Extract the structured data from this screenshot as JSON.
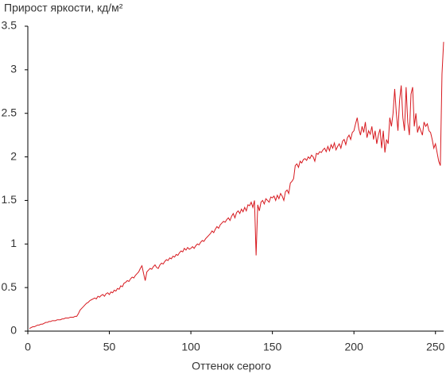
{
  "chart_data": {
    "type": "line",
    "title": "Прирост яркости, кд/м²",
    "x_label": "Оттенок серого",
    "color": "#d7191f",
    "xlim": [
      0,
      255
    ],
    "ylim": [
      0,
      3.5
    ],
    "xticks": [
      0,
      50,
      100,
      150,
      200,
      250
    ],
    "yticks": [
      0,
      0.5,
      1,
      1.5,
      2,
      2.5,
      3,
      3.5
    ],
    "grid": false,
    "x": [
      1,
      2,
      3,
      4,
      5,
      6,
      7,
      8,
      9,
      10,
      11,
      12,
      13,
      14,
      15,
      16,
      17,
      18,
      19,
      20,
      21,
      22,
      23,
      24,
      25,
      26,
      27,
      28,
      29,
      30,
      31,
      32,
      33,
      34,
      35,
      36,
      37,
      38,
      39,
      40,
      41,
      42,
      43,
      44,
      45,
      46,
      47,
      48,
      49,
      50,
      51,
      52,
      53,
      54,
      55,
      56,
      57,
      58,
      59,
      60,
      61,
      62,
      63,
      64,
      65,
      66,
      67,
      68,
      69,
      70,
      71,
      72,
      73,
      74,
      75,
      76,
      77,
      78,
      79,
      80,
      81,
      82,
      83,
      84,
      85,
      86,
      87,
      88,
      89,
      90,
      91,
      92,
      93,
      94,
      95,
      96,
      97,
      98,
      99,
      100,
      101,
      102,
      103,
      104,
      105,
      106,
      107,
      108,
      109,
      110,
      111,
      112,
      113,
      114,
      115,
      116,
      117,
      118,
      119,
      120,
      121,
      122,
      123,
      124,
      125,
      126,
      127,
      128,
      129,
      130,
      131,
      132,
      133,
      134,
      135,
      136,
      137,
      138,
      139,
      140,
      141,
      142,
      143,
      144,
      145,
      146,
      147,
      148,
      149,
      150,
      151,
      152,
      153,
      154,
      155,
      156,
      157,
      158,
      159,
      160,
      161,
      162,
      163,
      164,
      165,
      166,
      167,
      168,
      169,
      170,
      171,
      172,
      173,
      174,
      175,
      176,
      177,
      178,
      179,
      180,
      181,
      182,
      183,
      184,
      185,
      186,
      187,
      188,
      189,
      190,
      191,
      192,
      193,
      194,
      195,
      196,
      197,
      198,
      199,
      200,
      201,
      202,
      203,
      204,
      205,
      206,
      207,
      208,
      209,
      210,
      211,
      212,
      213,
      214,
      215,
      216,
      217,
      218,
      219,
      220,
      221,
      222,
      223,
      224,
      225,
      226,
      227,
      228,
      229,
      230,
      231,
      232,
      233,
      234,
      235,
      236,
      237,
      238,
      239,
      240,
      241,
      242,
      243,
      244,
      245,
      246,
      247,
      248,
      249,
      250,
      251,
      252,
      253,
      254,
      255
    ],
    "values": [
      0.03,
      0.04,
      0.05,
      0.05,
      0.06,
      0.07,
      0.07,
      0.08,
      0.08,
      0.09,
      0.1,
      0.1,
      0.11,
      0.11,
      0.12,
      0.12,
      0.12,
      0.13,
      0.13,
      0.13,
      0.14,
      0.14,
      0.15,
      0.15,
      0.15,
      0.16,
      0.16,
      0.16,
      0.17,
      0.17,
      0.2,
      0.24,
      0.26,
      0.28,
      0.3,
      0.32,
      0.33,
      0.35,
      0.36,
      0.37,
      0.38,
      0.37,
      0.4,
      0.39,
      0.41,
      0.42,
      0.4,
      0.43,
      0.44,
      0.42,
      0.45,
      0.44,
      0.47,
      0.46,
      0.49,
      0.48,
      0.52,
      0.51,
      0.55,
      0.56,
      0.58,
      0.57,
      0.6,
      0.62,
      0.61,
      0.64,
      0.66,
      0.68,
      0.72,
      0.75,
      0.66,
      0.58,
      0.68,
      0.7,
      0.72,
      0.71,
      0.74,
      0.76,
      0.73,
      0.72,
      0.76,
      0.78,
      0.77,
      0.8,
      0.82,
      0.81,
      0.84,
      0.83,
      0.86,
      0.85,
      0.88,
      0.87,
      0.9,
      0.92,
      0.91,
      0.95,
      0.93,
      0.96,
      0.94,
      0.95,
      0.97,
      0.95,
      0.98,
      1.0,
      0.99,
      1.02,
      1.04,
      1.03,
      1.06,
      1.08,
      1.1,
      1.12,
      1.15,
      1.13,
      1.17,
      1.2,
      1.18,
      1.22,
      1.24,
      1.26,
      1.25,
      1.28,
      1.3,
      1.27,
      1.32,
      1.35,
      1.3,
      1.36,
      1.38,
      1.35,
      1.4,
      1.37,
      1.42,
      1.38,
      1.45,
      1.44,
      1.48,
      1.42,
      1.5,
      0.87,
      1.45,
      1.38,
      1.48,
      1.5,
      1.46,
      1.52,
      1.5,
      1.48,
      1.54,
      1.53,
      1.55,
      1.5,
      1.56,
      1.52,
      1.58,
      1.55,
      1.5,
      1.6,
      1.62,
      1.58,
      1.7,
      1.72,
      1.75,
      1.9,
      1.92,
      1.88,
      1.95,
      1.93,
      1.97,
      1.98,
      1.96,
      2.0,
      1.98,
      2.02,
      2.0,
      1.95,
      2.04,
      2.03,
      2.06,
      2.05,
      2.08,
      2.1,
      2.06,
      2.12,
      2.07,
      2.14,
      2.1,
      2.16,
      2.08,
      2.12,
      2.15,
      2.1,
      2.18,
      2.2,
      2.14,
      2.22,
      2.25,
      2.2,
      2.28,
      2.3,
      2.38,
      2.45,
      2.32,
      2.25,
      2.35,
      2.28,
      2.4,
      2.22,
      2.3,
      2.26,
      2.35,
      2.2,
      2.3,
      2.15,
      2.25,
      2.32,
      2.1,
      2.3,
      2.05,
      2.2,
      2.15,
      2.45,
      2.35,
      2.5,
      2.78,
      2.5,
      2.3,
      2.65,
      2.82,
      2.45,
      2.3,
      2.8,
      2.4,
      2.25,
      2.72,
      2.8,
      2.35,
      2.5,
      2.28,
      2.35,
      2.3,
      2.25,
      2.4,
      2.35,
      2.38,
      2.3,
      2.28,
      2.2,
      2.1,
      2.15,
      2.05,
      1.95,
      1.9,
      2.95,
      3.32
    ]
  }
}
